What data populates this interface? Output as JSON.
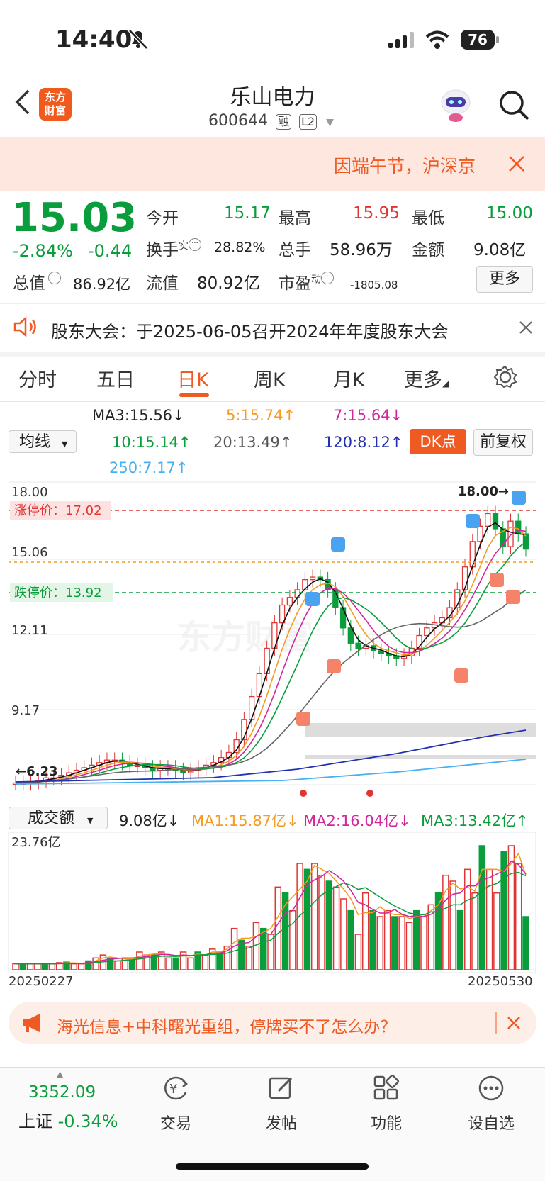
{
  "status": {
    "time": "14:40",
    "battery": "76"
  },
  "header": {
    "logo_line1": "东方",
    "logo_line2": "财富",
    "title": "乐山电力",
    "code": "600644",
    "tag1": "融",
    "tag2": "L2"
  },
  "notice": {
    "text": "因端午节，沪深京"
  },
  "quote": {
    "price": "15.03",
    "change_pct": "-2.84%",
    "change": "-0.44",
    "open_label": "今开",
    "open": "15.17",
    "high_label": "最高",
    "high": "15.95",
    "low_label": "最低",
    "low": "15.00",
    "turnover_label": "换手",
    "turnover_sup": "实",
    "turnover": "28.82%",
    "volume_label": "总手",
    "volume": "58.96万",
    "amount_label": "金额",
    "amount": "9.08亿",
    "mcap_label": "总值",
    "mcap": "86.92亿",
    "float_label": "流值",
    "float": "80.92亿",
    "pe_label": "市盈",
    "pe_sup": "动",
    "pe": "-1805.08",
    "more": "更多"
  },
  "announcement": {
    "text": "股东大会：于2025-06-05召开2024年年度股东大会"
  },
  "tabs": [
    "分时",
    "五日",
    "日K",
    "周K",
    "月K",
    "更多"
  ],
  "active_tab": "日K",
  "ma": {
    "select": "均线",
    "ma3": "MA3:15.56↓",
    "ma5": "5:15.74↑",
    "ma7": "7:15.64↓",
    "ma10": "10:15.14↑",
    "ma20": "20:13.49↑",
    "ma120": "120:8.12↑",
    "ma250": "250:7.17↑",
    "dk_button": "DK点",
    "adjust_button": "前复权"
  },
  "kchart": {
    "y_labels": [
      "18.00",
      "15.06",
      "12.11",
      "9.17",
      "6.23"
    ],
    "limit_up": "涨停价：17.02",
    "limit_down": "跌停价：13.92",
    "high_marker": "18.00→",
    "low_marker": "←6.23",
    "watermark": "东方财富"
  },
  "volume": {
    "select": "成交额",
    "value": "9.08亿↓",
    "ma1": "MA1:15.87亿↓",
    "ma2": "MA2:16.04亿↓",
    "ma3": "MA3:13.42亿↑",
    "max_label": "23.76亿",
    "date_start": "20250227",
    "date_end": "20250530"
  },
  "ad": {
    "text": "海光信息+中科曙光重组，停牌买不了怎么办？"
  },
  "bottom": {
    "index_value": "3352.09",
    "index_name": "上证",
    "index_change": "-0.34%",
    "nav": [
      "交易",
      "发帖",
      "功能",
      "设自选"
    ]
  },
  "colors": {
    "up": "#e03535",
    "down": "#0a9d3c",
    "accent": "#f05a1c"
  }
}
